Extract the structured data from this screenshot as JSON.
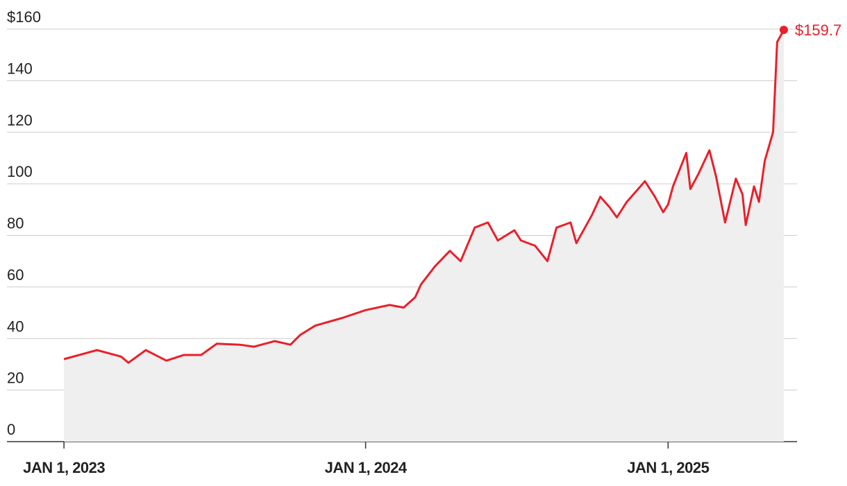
{
  "chart_data": {
    "type": "line",
    "x": [
      "2023-01-01",
      "2023-02-10",
      "2023-03-11",
      "2023-03-20",
      "2023-04-10",
      "2023-05-05",
      "2023-05-26",
      "2023-06-16",
      "2023-07-05",
      "2023-08-02",
      "2023-08-19",
      "2023-09-13",
      "2023-10-02",
      "2023-10-14",
      "2023-11-01",
      "2023-12-04",
      "2024-01-01",
      "2024-01-30",
      "2024-02-16",
      "2024-03-01",
      "2024-03-08",
      "2024-03-25",
      "2024-04-12",
      "2024-04-25",
      "2024-05-12",
      "2024-05-28",
      "2024-06-09",
      "2024-06-29",
      "2024-07-07",
      "2024-07-24",
      "2024-08-08",
      "2024-08-19",
      "2024-09-05",
      "2024-09-12",
      "2024-10-01",
      "2024-10-11",
      "2024-10-22",
      "2024-10-31",
      "2024-11-12",
      "2024-12-04",
      "2024-12-16",
      "2024-12-26",
      "2025-01-01",
      "2025-01-07",
      "2025-01-23",
      "2025-01-28",
      "2025-02-07",
      "2025-02-20",
      "2025-02-28",
      "2025-03-11",
      "2025-03-24",
      "2025-04-01",
      "2025-04-05",
      "2025-04-15",
      "2025-04-21",
      "2025-04-28",
      "2025-05-08",
      "2025-05-13",
      "2025-05-21"
    ],
    "values": [
      32,
      35.5,
      33,
      30.6,
      35.5,
      31.4,
      33.6,
      33.6,
      38,
      37.6,
      36.8,
      39,
      37.6,
      41.4,
      45,
      48,
      51,
      53,
      52,
      56,
      61,
      68,
      74,
      70,
      83,
      85,
      78,
      82,
      78,
      76,
      70,
      83,
      85,
      77,
      88,
      95,
      91,
      87,
      93,
      101,
      95,
      89,
      92,
      99,
      112,
      98,
      104,
      113,
      103,
      85,
      102,
      96,
      84,
      99,
      93,
      109,
      120,
      155,
      159.7
    ],
    "value_labels": [
      null,
      null,
      null,
      null,
      null,
      null,
      null,
      null,
      null,
      null,
      null,
      null,
      null,
      null,
      null,
      null,
      null,
      null,
      null,
      null,
      null,
      null,
      null,
      null,
      null,
      null,
      null,
      null,
      null,
      null,
      null,
      null,
      null,
      null,
      null,
      null,
      null,
      null,
      null,
      null,
      null,
      null,
      null,
      null,
      null,
      null,
      null,
      null,
      null,
      null,
      null,
      null,
      null,
      null,
      null,
      null,
      null,
      null,
      "$159.7"
    ],
    "color": "#e8202a",
    "fill": "#efefef",
    "xlim": [
      "2022-10-24",
      "2025-06-06"
    ],
    "xticks": [
      {
        "value": "2023-01-01",
        "label": "JAN 1, 2023"
      },
      {
        "value": "2024-01-01",
        "label": "JAN 1, 2024"
      },
      {
        "value": "2025-01-01",
        "label": "JAN 1, 2025"
      }
    ],
    "ylim": [
      0,
      160
    ],
    "yticks": [
      0,
      20,
      40,
      60,
      80,
      100,
      120,
      140,
      {
        "value": 160,
        "label": "$160"
      }
    ],
    "grid": true
  }
}
